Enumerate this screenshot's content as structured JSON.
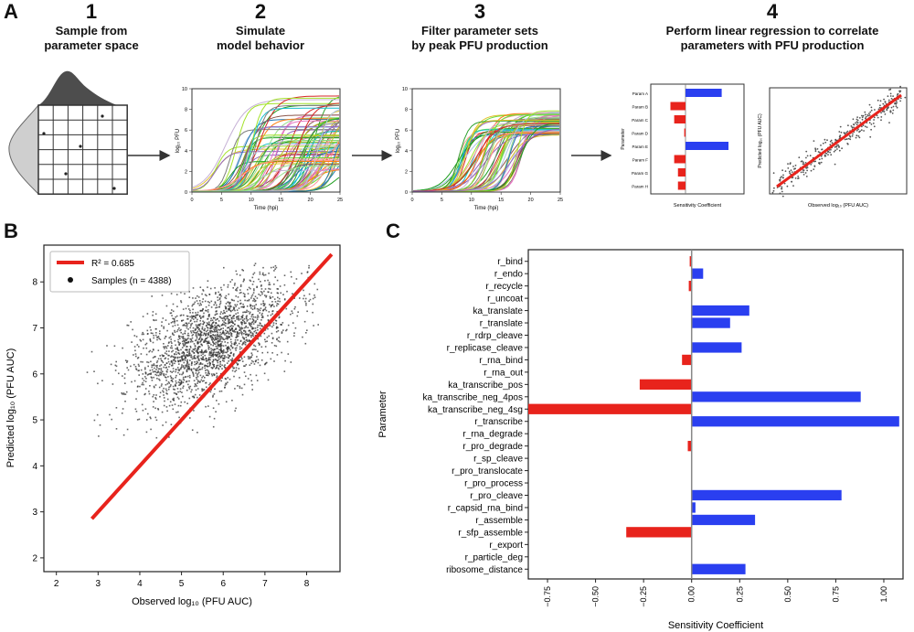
{
  "panel_a": {
    "letter": "A",
    "steps": [
      {
        "num": "1",
        "line1": "Sample from",
        "line2": "parameter space"
      },
      {
        "num": "2",
        "line1": "Simulate",
        "line2": "model behavior"
      },
      {
        "num": "3",
        "line1": "Filter parameter sets",
        "line2": "by peak PFU production"
      },
      {
        "num": "4",
        "line1": "Perform linear regression to correlate",
        "line2": "parameters with PFU production"
      }
    ],
    "sim_ylabel": "log₁₀ PFU",
    "sim_xlabel": "Time (hpi)",
    "sim_xticks": [
      "0",
      "5",
      "10",
      "15",
      "20",
      "25"
    ],
    "sim_yticks": [
      "0",
      "2",
      "4",
      "6",
      "8",
      "10"
    ],
    "mini_sens_xlabel": "Sensitivity Coefficient",
    "mini_sens_ylabel": "Parameter",
    "mini_sens_params": [
      "Param A",
      "Param B",
      "Param C",
      "Param D",
      "Param E",
      "Param F",
      "Param G",
      "Param H"
    ],
    "mini_reg_xlabel": "Observed log₁₀ (PFU AUC)",
    "mini_reg_ylabel": "Predicted log₁₀ (PFU AUC)"
  },
  "chart_data": [
    {
      "id": "B",
      "type": "scatter",
      "letter": "B",
      "xlabel": "Observed log₁₀ (PFU AUC)",
      "ylabel": "Predicted log₁₀ (PFU AUC)",
      "xlim": [
        1.7,
        8.8
      ],
      "ylim": [
        1.7,
        8.8
      ],
      "xticks": [
        2,
        3,
        4,
        5,
        6,
        7,
        8
      ],
      "yticks": [
        2,
        3,
        4,
        5,
        6,
        7,
        8
      ],
      "legend": [
        {
          "label": "R² = 0.685",
          "type": "line",
          "color": "#e8231c"
        },
        {
          "label": "Samples (n = 4388)",
          "type": "marker",
          "color": "#111111"
        }
      ],
      "legend_position": "top-left",
      "fit_line": {
        "x": [
          2.85,
          8.6
        ],
        "y": [
          2.85,
          8.6
        ],
        "color": "#e8231c"
      },
      "scatter_color": "#333333",
      "n_samples": 4388
    },
    {
      "id": "C",
      "type": "bar",
      "orientation": "horizontal",
      "letter": "C",
      "xlabel": "Sensitivity Coefficient",
      "ylabel": "Parameter",
      "xlim": [
        -0.85,
        1.1
      ],
      "xticks": [
        -0.75,
        -0.5,
        -0.25,
        0.0,
        0.25,
        0.5,
        0.75,
        1.0
      ],
      "xtick_labels": [
        "−0.75",
        "−0.50",
        "−0.25",
        "0.00",
        "0.25",
        "0.50",
        "0.75",
        "1.00"
      ],
      "positive_color": "#2a3ff0",
      "negative_color": "#e8231c",
      "categories": [
        "r_bind",
        "r_endo",
        "r_recycle",
        "r_uncoat",
        "ka_translate",
        "r_translate",
        "r_rdrp_cleave",
        "r_replicase_cleave",
        "r_rna_bind",
        "r_rna_out",
        "ka_transcribe_pos",
        "ka_transcribe_neg_4pos",
        "ka_transcribe_neg_4sg",
        "r_transcribe",
        "r_rna_degrade",
        "r_pro_degrade",
        "r_sp_cleave",
        "r_pro_translocate",
        "r_pro_process",
        "r_pro_cleave",
        "r_capsid_rna_bind",
        "r_assemble",
        "r_sfp_assemble",
        "r_export",
        "r_particle_deg",
        "ribosome_distance"
      ],
      "values": [
        -0.01,
        0.06,
        -0.015,
        0.0,
        0.3,
        0.2,
        0.0,
        0.26,
        -0.05,
        0.0,
        -0.27,
        0.88,
        -0.85,
        1.08,
        0.0,
        -0.02,
        0.0,
        0.0,
        0.0,
        0.78,
        0.02,
        0.33,
        -0.34,
        0.0,
        0.0,
        0.28
      ]
    }
  ]
}
